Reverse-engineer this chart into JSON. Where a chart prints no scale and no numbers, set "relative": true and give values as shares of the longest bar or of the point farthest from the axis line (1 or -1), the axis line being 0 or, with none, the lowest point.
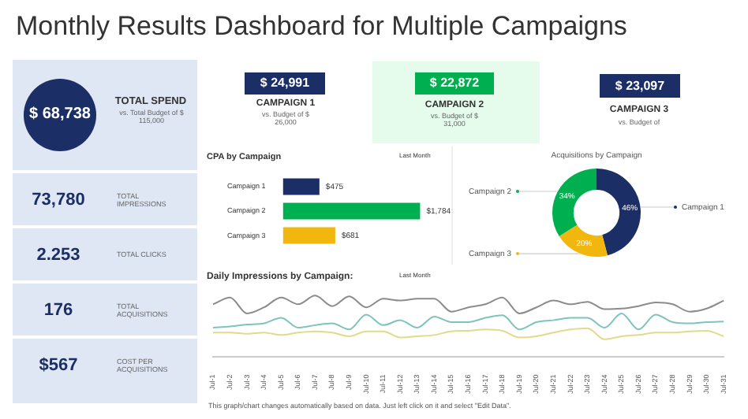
{
  "chart_data": [
    {
      "type": "other",
      "title": "Monthly Results Dashboard for Multiple Campaigns",
      "annotations": [
        "$ 68,738",
        "TOTAL SPEND",
        "vs. Total Budget of $ 115,000",
        "73,780",
        "TOTAL IMPRESSIONS",
        "2.253",
        "TOTAL CLICKS",
        "176",
        "TOTAL ACQUISITIONS",
        "$567",
        "COST PER ACQUISITIONS",
        "$ 24,991",
        "CAMPAIGN 1",
        "vs. Budget of $ 26,000",
        "$ 22,872",
        "CAMPAIGN 2",
        "vs. Budget of $ 31,000",
        "$ 23,097",
        "CAMPAIGN 3",
        "vs. Budget of",
        "This graph/chart changes automatically based on data. Just left click on it and select \"Edit Data\"."
      ]
    },
    {
      "type": "bar",
      "title": "CPA by Campaign",
      "subtitle": "Last Month",
      "orientation": "horizontal",
      "categories": [
        "Campaign 1",
        "Campaign 2",
        "Campaign 3"
      ],
      "values": [
        475,
        1784,
        681
      ],
      "colors": [
        "#1b2f66",
        "#00b050",
        "#f2b70f"
      ],
      "value_labels": [
        "$475",
        "$1,784",
        "$681"
      ],
      "tick_labels": "y"
    },
    {
      "type": "donut",
      "title": "Acquisitions by Campaign",
      "categories": [
        "Campaign 1",
        "Campaign 3",
        "Campaign 2"
      ],
      "values": [
        46,
        20,
        34
      ],
      "colors": [
        "#1b2f66",
        "#f2b70f",
        "#00b050"
      ],
      "value_labels": [
        "46%",
        "20%",
        "34%"
      ]
    },
    {
      "type": "line",
      "title": "Daily Impressions by Campaign:",
      "subtitle": "Last Month",
      "relative": true,
      "tick_labels": "x",
      "categories": [
        "Jul-1",
        "Jul-2",
        "Jul-3",
        "Jul-4",
        "Jul-5",
        "Jul-6",
        "Jul-7",
        "Jul-8",
        "Jul-9",
        "Jul-10",
        "Jul-11",
        "Jul-12",
        "Jul-13",
        "Jul-14",
        "Jul-15",
        "Jul-16",
        "Jul-17",
        "Jul-18",
        "Jul-19",
        "Jul-20",
        "Jul-21",
        "Jul-22",
        "Jul-23",
        "Jul-24",
        "Jul-25",
        "Jul-26",
        "Jul-27",
        "Jul-28",
        "Jul-29",
        "Jul-30",
        "Jul-31"
      ],
      "series": [
        {
          "color": "#8c8c8c",
          "values": [
            0.86,
            0.97,
            0.71,
            0.81,
            0.97,
            0.86,
            1,
            0.83,
            0.99,
            0.81,
            0.95,
            0.92,
            0.95,
            0.95,
            0.74,
            0.81,
            0.86,
            0.97,
            0.71,
            0.81,
            0.92,
            0.86,
            0.9,
            0.78,
            0.79,
            0.83,
            0.89,
            0.86,
            0.74,
            0.79,
            0.92
          ]
        },
        {
          "color": "#7fc4bc",
          "values": [
            0.48,
            0.5,
            0.53,
            0.55,
            0.64,
            0.48,
            0.52,
            0.55,
            0.45,
            0.69,
            0.52,
            0.6,
            0.48,
            0.66,
            0.57,
            0.57,
            0.64,
            0.68,
            0.45,
            0.57,
            0.6,
            0.64,
            0.64,
            0.48,
            0.71,
            0.45,
            0.69,
            0.57,
            0.55,
            0.57,
            0.58
          ]
        },
        {
          "color": "#e3d98a",
          "values": [
            0.4,
            0.4,
            0.38,
            0.4,
            0.36,
            0.4,
            0.42,
            0.4,
            0.34,
            0.42,
            0.42,
            0.32,
            0.34,
            0.36,
            0.42,
            0.43,
            0.45,
            0.43,
            0.32,
            0.34,
            0.4,
            0.45,
            0.47,
            0.29,
            0.34,
            0.36,
            0.4,
            0.4,
            0.42,
            0.43,
            0.34
          ]
        }
      ]
    }
  ]
}
